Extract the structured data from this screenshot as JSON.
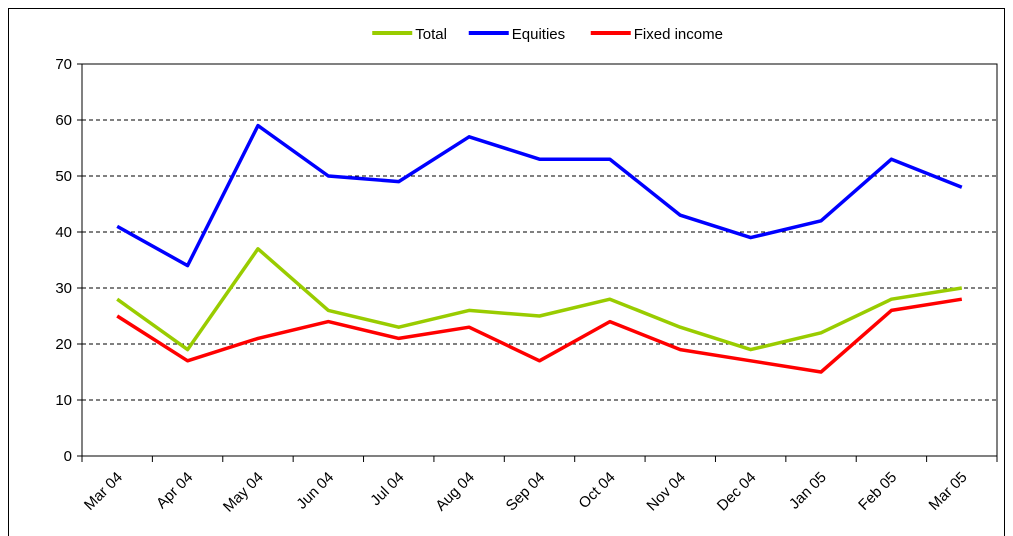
{
  "chart_data": {
    "type": "line",
    "categories": [
      "Mar 04",
      "Apr 04",
      "May 04",
      "Jun 04",
      "Jul 04",
      "Aug 04",
      "Sep 04",
      "Oct 04",
      "Nov 04",
      "Dec 04",
      "Jan 05",
      "Feb 05",
      "Mar 05"
    ],
    "series": [
      {
        "name": "Total",
        "color": "#99cc00",
        "values": [
          28,
          19,
          37,
          26,
          23,
          26,
          25,
          28,
          23,
          19,
          22,
          28,
          30
        ]
      },
      {
        "name": "Equities",
        "color": "#0000ff",
        "values": [
          41,
          34,
          59,
          50,
          49,
          57,
          53,
          53,
          43,
          39,
          42,
          53,
          48
        ]
      },
      {
        "name": "Fixed income",
        "color": "#ff0000",
        "values": [
          25,
          17,
          21,
          24,
          21,
          23,
          17,
          24,
          19,
          17,
          15,
          26,
          28
        ]
      }
    ],
    "ylim": [
      0,
      70
    ],
    "yticks": [
      0,
      10,
      20,
      30,
      40,
      50,
      60,
      70
    ],
    "grid": true,
    "legend": "top"
  }
}
